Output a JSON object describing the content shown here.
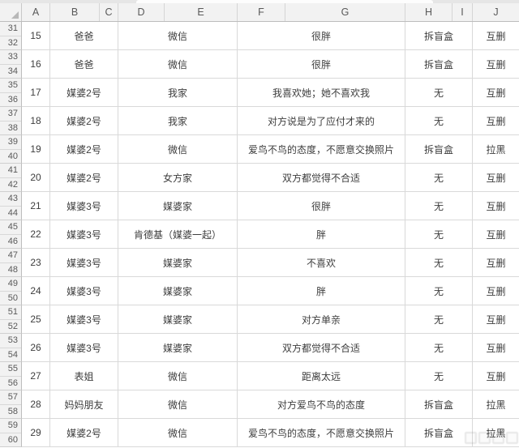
{
  "column_headers": [
    "A",
    "B",
    "C",
    "D",
    "E",
    "F",
    "G",
    "H",
    "I",
    "J"
  ],
  "row_numbers": [
    "31",
    "32",
    "33",
    "34",
    "35",
    "36",
    "37",
    "38",
    "39",
    "40",
    "41",
    "42",
    "43",
    "44",
    "45",
    "46",
    "47",
    "48",
    "49",
    "50",
    "51",
    "52",
    "53",
    "54",
    "55",
    "56",
    "57",
    "58",
    "59",
    "60"
  ],
  "colors": {
    "header_bg": "#f2f2f2",
    "gridline": "#d9d9d9",
    "header_text": "#595959",
    "cell_text": "#3d3d3d"
  },
  "records": [
    {
      "id": "15",
      "person": "爸爸",
      "place": "微信",
      "reason": "很胖",
      "result1": "拆盲盒",
      "result2": "互删"
    },
    {
      "id": "16",
      "person": "爸爸",
      "place": "微信",
      "reason": "很胖",
      "result1": "拆盲盒",
      "result2": "互删"
    },
    {
      "id": "17",
      "person": "媒婆2号",
      "place": "我家",
      "reason": "我喜欢她；她不喜欢我",
      "result1": "无",
      "result2": "互删"
    },
    {
      "id": "18",
      "person": "媒婆2号",
      "place": "我家",
      "reason": "对方说是为了应付才来的",
      "result1": "无",
      "result2": "互删"
    },
    {
      "id": "19",
      "person": "媒婆2号",
      "place": "微信",
      "reason": "爱鸟不鸟的态度，不愿意交换照片",
      "result1": "拆盲盒",
      "result2": "拉黑"
    },
    {
      "id": "20",
      "person": "媒婆2号",
      "place": "女方家",
      "reason": "双方都觉得不合适",
      "result1": "无",
      "result2": "互删"
    },
    {
      "id": "21",
      "person": "媒婆3号",
      "place": "媒婆家",
      "reason": "很胖",
      "result1": "无",
      "result2": "互删"
    },
    {
      "id": "22",
      "person": "媒婆3号",
      "place": "肯德基（媒婆一起）",
      "reason": "胖",
      "result1": "无",
      "result2": "互删"
    },
    {
      "id": "23",
      "person": "媒婆3号",
      "place": "媒婆家",
      "reason": "不喜欢",
      "result1": "无",
      "result2": "互删"
    },
    {
      "id": "24",
      "person": "媒婆3号",
      "place": "媒婆家",
      "reason": "胖",
      "result1": "无",
      "result2": "互删"
    },
    {
      "id": "25",
      "person": "媒婆3号",
      "place": "媒婆家",
      "reason": "对方单亲",
      "result1": "无",
      "result2": "互删"
    },
    {
      "id": "26",
      "person": "媒婆3号",
      "place": "媒婆家",
      "reason": "双方都觉得不合适",
      "result1": "无",
      "result2": "互删"
    },
    {
      "id": "27",
      "person": "表姐",
      "place": "微信",
      "reason": "距离太远",
      "result1": "无",
      "result2": "互删"
    },
    {
      "id": "28",
      "person": "妈妈朋友",
      "place": "微信",
      "reason": "对方爱鸟不鸟的态度",
      "result1": "拆盲盒",
      "result2": "拉黑"
    },
    {
      "id": "29",
      "person": "媒婆2号",
      "place": "微信",
      "reason": "爱鸟不鸟的态度，不愿意交换照片",
      "result1": "拆盲盒",
      "result2": "拉黑"
    }
  ]
}
